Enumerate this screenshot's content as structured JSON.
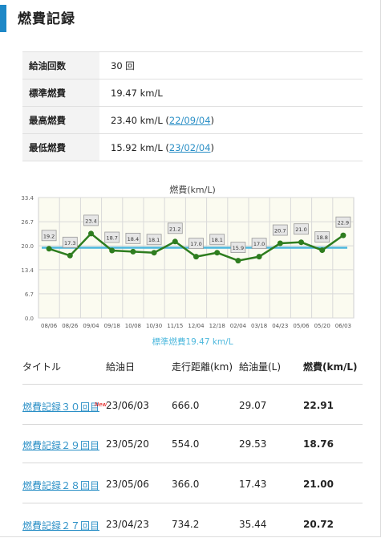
{
  "page_title": "燃費記録",
  "summary": [
    {
      "label": "給油回数",
      "value": "30 回",
      "date": ""
    },
    {
      "label": "標準燃費",
      "value": "19.47 km/L",
      "date": ""
    },
    {
      "label": "最高燃費",
      "value": "23.40 km/L (",
      "date": "22/09/04",
      "close": ")"
    },
    {
      "label": "最低燃費",
      "value": "15.92 km/L (",
      "date": "23/02/04",
      "close": ")"
    }
  ],
  "chart_data": {
    "type": "line",
    "title": "燃費(km/L)",
    "categories": [
      "08/06",
      "08/26",
      "09/04",
      "09/18",
      "10/08",
      "10/30",
      "11/15",
      "12/04",
      "12/18",
      "02/04",
      "03/18",
      "04/23",
      "05/06",
      "05/20",
      "06/03"
    ],
    "series": [
      {
        "values": [
          19.2,
          17.3,
          23.4,
          18.7,
          18.4,
          18.1,
          21.2,
          17.0,
          18.1,
          15.9,
          17.0,
          20.7,
          21.0,
          18.8,
          22.9
        ],
        "color": "#2e7d1f"
      }
    ],
    "value_labels": [
      "19.2",
      "17.3",
      "23.4",
      "18.7",
      "18.4",
      "18.1",
      "21.2",
      "17.0",
      "18.1",
      "15.9",
      "17.0",
      "20.7",
      "21.0",
      "18.8",
      "22.9"
    ],
    "reference_line": {
      "value": 19.47,
      "label": "標準燃費19.47 km/L",
      "color": "#4db8dd"
    },
    "yticks": [
      "33.4",
      "26.7",
      "20.0",
      "13.4",
      "6.7",
      "0.0"
    ],
    "ylim": [
      0,
      33.4
    ],
    "grid": true
  },
  "records": {
    "headers": [
      "タイトル",
      "給油日",
      "走行距離(km)",
      "給油量(L)",
      "燃費(km/L)"
    ],
    "new_badge": "New",
    "rows": [
      {
        "title": "燃費記録３０回目",
        "date": "23/06/03",
        "distance": "666.0",
        "amount": "29.07",
        "fuel": "22.91"
      },
      {
        "title": "燃費記録２９回目",
        "date": "23/05/20",
        "distance": "554.0",
        "amount": "29.53",
        "fuel": "18.76"
      },
      {
        "title": "燃費記録２８回目",
        "date": "23/05/06",
        "distance": "366.0",
        "amount": "17.43",
        "fuel": "21.00"
      },
      {
        "title": "燃費記録２７回目",
        "date": "23/04/23",
        "distance": "734.2",
        "amount": "35.44",
        "fuel": "20.72"
      }
    ]
  }
}
